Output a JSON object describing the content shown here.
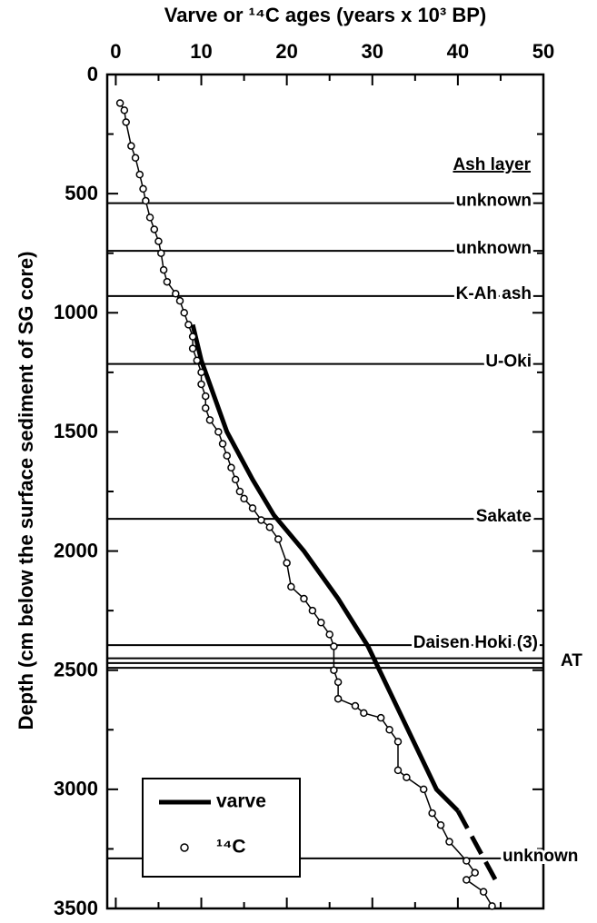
{
  "chart_data": {
    "type": "scatter",
    "title": "Varve or ¹⁴C ages (years x 10³ BP)",
    "y_label": "Depth (cm below the surface sediment of SG core)",
    "xlim": [
      -1,
      50
    ],
    "xticks": [
      0,
      10,
      20,
      30,
      40,
      50
    ],
    "ylim": [
      0,
      3500
    ],
    "yticks": [
      0,
      500,
      1000,
      1500,
      2000,
      2500,
      3000,
      3500
    ],
    "y_inverted": true,
    "x_axis_position": "top",
    "legend": "lower left",
    "series": [
      {
        "name": "varve",
        "color": "#000000",
        "kind": "line",
        "x": [
          9,
          10,
          11.5,
          13,
          16,
          18.5,
          22,
          26,
          29.5,
          33.5,
          37.5,
          40
        ],
        "values": [
          1050,
          1200,
          1350,
          1500,
          1700,
          1850,
          2000,
          2200,
          2400,
          2700,
          3000,
          3090
        ]
      },
      {
        "color": "#000000",
        "kind": "line",
        "dash": true,
        "x": [
          40,
          44.7
        ],
        "values": [
          3090,
          3400
        ]
      },
      {
        "name": "¹⁴C",
        "color": "#000000",
        "kind": "points",
        "x": [
          0.5,
          1,
          1.2,
          1.8,
          2.3,
          2.8,
          3.2,
          3.5,
          4,
          4.5,
          5,
          5.3,
          5.6,
          6,
          7,
          7.5,
          8,
          8.5,
          9,
          9,
          9.5,
          10,
          10,
          10.5,
          10.5,
          11,
          12,
          12.5,
          13,
          13.5,
          14,
          14.5,
          15,
          16,
          17,
          18,
          19,
          20,
          20.5,
          22,
          23,
          24,
          25,
          25.5,
          25.5,
          26,
          26,
          28,
          29,
          31,
          32,
          33,
          33,
          34,
          36,
          37,
          38,
          39,
          41,
          42,
          41,
          43,
          44
        ],
        "values": [
          120,
          150,
          200,
          300,
          350,
          420,
          480,
          530,
          600,
          650,
          700,
          750,
          820,
          870,
          920,
          950,
          1000,
          1050,
          1100,
          1150,
          1200,
          1250,
          1300,
          1350,
          1400,
          1450,
          1500,
          1550,
          1600,
          1650,
          1700,
          1750,
          1780,
          1820,
          1870,
          1900,
          1950,
          2050,
          2150,
          2200,
          2250,
          2300,
          2350,
          2400,
          2500,
          2550,
          2620,
          2650,
          2680,
          2700,
          2750,
          2800,
          2920,
          2950,
          3000,
          3100,
          3150,
          3220,
          3300,
          3350,
          3380,
          3430,
          3490
        ]
      }
    ],
    "ash_layer_title": "Ash layer",
    "ash_layers": [
      {
        "label": "unknown",
        "y": 540
      },
      {
        "label": "unknown",
        "y": 740
      },
      {
        "label": "K-Ah ash",
        "y": 930
      },
      {
        "label": "U-Oki",
        "y": 1215
      },
      {
        "label": "Sakate",
        "y": 1865
      },
      {
        "label": "Daisen Hoki (3)",
        "y": 2395
      },
      {
        "label": "AT",
        "y": [
          2450,
          2470,
          2490
        ]
      },
      {
        "label": "unknown",
        "y": 3290
      }
    ]
  }
}
